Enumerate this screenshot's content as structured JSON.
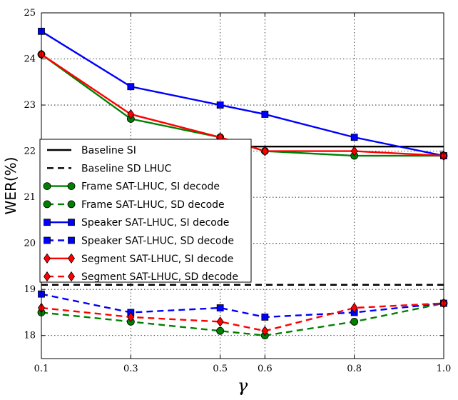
{
  "chart_data": {
    "type": "line",
    "title": "",
    "xlabel": "γ",
    "ylabel": "WER(%)",
    "xlim": [
      0.1,
      1.0
    ],
    "ylim": [
      17.5,
      25
    ],
    "xticks": [
      0.1,
      0.3,
      0.5,
      0.6,
      0.8,
      1.0
    ],
    "xtick_labels": [
      "0.1",
      "0.3",
      "0.5",
      "0.6",
      "0.8",
      "1.0"
    ],
    "yticks": [
      18,
      19,
      20,
      21,
      22,
      23,
      24,
      25
    ],
    "ytick_labels": [
      "18",
      "19",
      "20",
      "21",
      "22",
      "23",
      "24",
      "25"
    ],
    "grid": true,
    "legend_position": "center-left",
    "x": [
      0.1,
      0.3,
      0.5,
      0.6,
      0.8,
      1.0
    ],
    "series": [
      {
        "name": "Baseline SI",
        "color": "#000000",
        "line": "solid",
        "marker": "none",
        "values": [
          22.1,
          22.1,
          22.1,
          22.1,
          22.1,
          22.1
        ]
      },
      {
        "name": "Baseline SD LHUC",
        "color": "#000000",
        "line": "dashed",
        "marker": "none",
        "values": [
          19.1,
          19.1,
          19.1,
          19.1,
          19.1,
          19.1
        ]
      },
      {
        "name": "Frame SAT-LHUC, SI decode",
        "color": "#008000",
        "line": "solid",
        "marker": "circle",
        "values": [
          24.1,
          22.7,
          22.3,
          22.0,
          21.9,
          21.9
        ]
      },
      {
        "name": "Frame SAT-LHUC, SD decode",
        "color": "#008000",
        "line": "dashed",
        "marker": "circle",
        "values": [
          18.5,
          18.3,
          18.1,
          18.0,
          18.3,
          18.7
        ]
      },
      {
        "name": "Speaker SAT-LHUC, SI decode",
        "color": "#0000ff",
        "line": "solid",
        "marker": "square",
        "values": [
          24.6,
          23.4,
          23.0,
          22.8,
          22.3,
          21.9
        ]
      },
      {
        "name": "Speaker SAT-LHUC, SD decode",
        "color": "#0000ff",
        "line": "dashed",
        "marker": "square",
        "values": [
          18.9,
          18.5,
          18.6,
          18.4,
          18.5,
          18.7
        ]
      },
      {
        "name": "Segment SAT-LHUC, SI decode",
        "color": "#ff0000",
        "line": "solid",
        "marker": "diamond",
        "values": [
          24.1,
          22.8,
          22.3,
          22.0,
          22.0,
          21.9
        ]
      },
      {
        "name": "Segment SAT-LHUC, SD decode",
        "color": "#ff0000",
        "line": "dashed",
        "marker": "diamond",
        "values": [
          18.6,
          18.4,
          18.3,
          18.1,
          18.6,
          18.7
        ]
      }
    ]
  }
}
